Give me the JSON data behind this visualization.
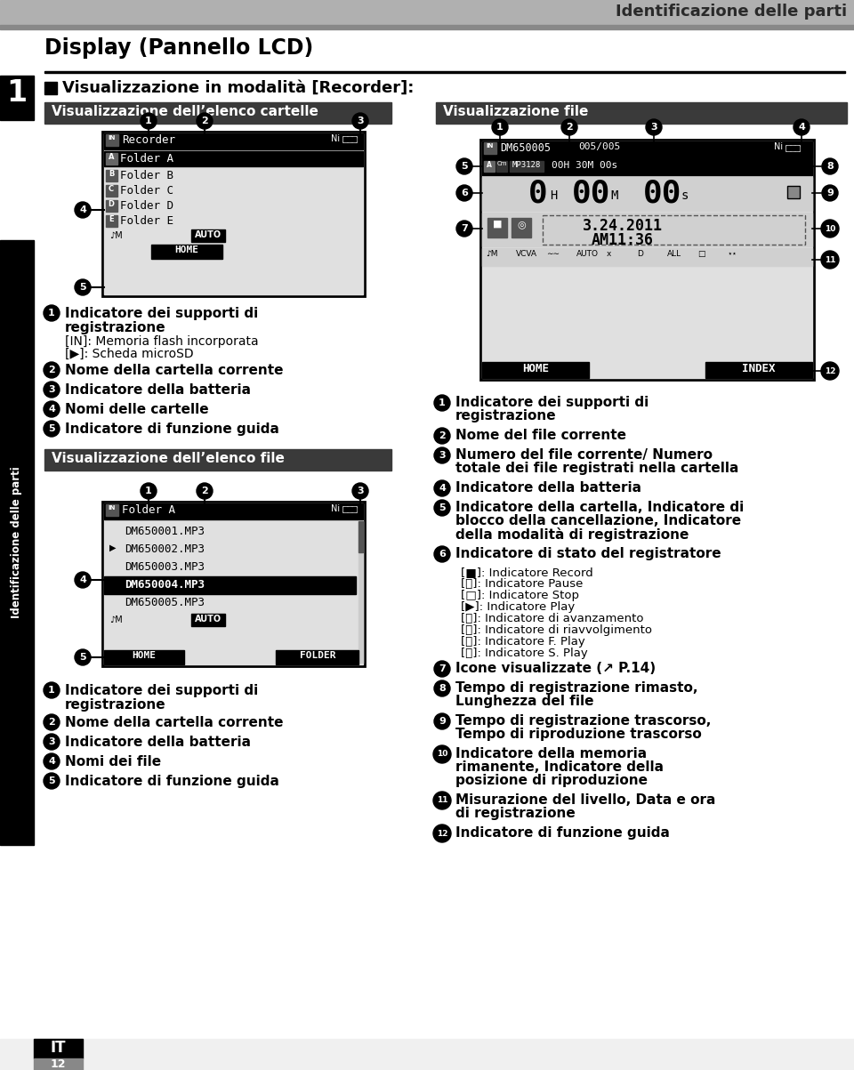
{
  "page_title": "Identificazione delle parti",
  "section_title": "Display (Pannello LCD)",
  "subsection_title": "Visualizzazione in modalità [Recorder]:",
  "panel1_title": "Visualizzazione dell’elenco cartelle",
  "panel2_title": "Visualizzazione dell’elenco file",
  "panel3_title": "Visualizzazione file",
  "sidebar_text": "Identificazione delle parti",
  "bg_color": "#ffffff",
  "header_bar_color": "#b0b0b0",
  "panel_bar_color": "#3a3a3a",
  "lcd_light": "#e0e0e0",
  "lcd_border": "#222222",
  "sub6_items": [
    "[■]: Indicatore Record",
    "[⏸]: Indicatore Pause",
    "[□]: Indicatore Stop",
    "[▶]: Indicatore Play",
    "[⏩]: Indicatore di avanzamento",
    "[⏪]: Indicatore di riavvolgimento",
    "[⏭]: Indicatore F. Play",
    "[⏮]: Indicatore S. Play"
  ],
  "right_desc": [
    [
      "1",
      "Indicatore dei supporti di\nregistrazione"
    ],
    [
      "2",
      "Nome del file corrente"
    ],
    [
      "3",
      "Numero del file corrente/ Numero\ntotale dei file registrati nella cartella"
    ],
    [
      "4",
      "Indicatore della batteria"
    ],
    [
      "5",
      "Indicatore della cartella, Indicatore di\nblocco della cancellazione, Indicatore\ndella modalità di registrazione"
    ],
    [
      "6",
      "Indicatore di stato del registratore"
    ],
    [
      "7",
      "Icone visualizzate (↗ P.14)"
    ],
    [
      "8",
      "Tempo di registrazione rimasto,\nLunghezza del file"
    ],
    [
      "9",
      "Tempo di registrazione trascorso,\nTempo di riproduzione trascorso"
    ],
    [
      "10",
      "Indicatore della memoria\nrimanente, Indicatore della\nposizione di riproduzione"
    ],
    [
      "11",
      "Misurazione del livello, Data e ora\ndi registrazione"
    ],
    [
      "12",
      "Indicatore di funzione guida"
    ]
  ]
}
